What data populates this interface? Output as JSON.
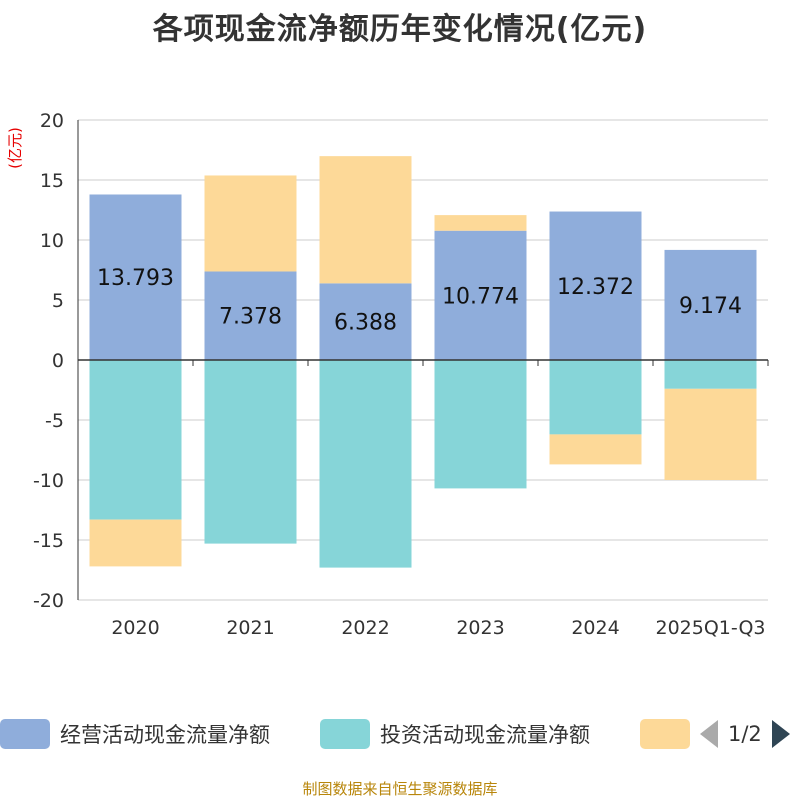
{
  "title": "各项现金流净额历年变化情况(亿元)",
  "footer": "制图数据来自恒生聚源数据库",
  "legend": {
    "items": [
      {
        "label": "经营活动现金流量净额",
        "color": "#8FADDB"
      },
      {
        "label": "投资活动现金流量净额",
        "color": "#86D5D8"
      },
      {
        "label": "",
        "color": "#FDD998"
      }
    ],
    "page": "1/2"
  },
  "chart_data": {
    "type": "bar",
    "stacked": true,
    "categories": [
      "2020",
      "2021",
      "2022",
      "2023",
      "2024",
      "2025Q1-Q3"
    ],
    "ylabel": "(亿元)",
    "ylim": [
      -20,
      20
    ],
    "yticks": [
      20,
      15,
      10,
      5,
      0,
      -5,
      -10,
      -15,
      -20
    ],
    "grid": true,
    "legend_position": "bottom",
    "series": [
      {
        "name": "经营活动现金流量净额",
        "color": "#8FADDB",
        "values": [
          13.793,
          7.378,
          6.388,
          10.774,
          12.372,
          9.174
        ],
        "labels": [
          "13.793",
          "7.378",
          "6.388",
          "10.774",
          "12.372",
          "9.174"
        ]
      },
      {
        "name": "投资活动现金流量净额",
        "color": "#86D5D8",
        "values": [
          -13.3,
          -15.3,
          -17.3,
          -10.7,
          -6.2,
          -2.4
        ]
      },
      {
        "color": "#FDD998",
        "values": [
          -3.9,
          8.0,
          10.6,
          1.3,
          -2.5,
          -7.6
        ]
      }
    ]
  }
}
